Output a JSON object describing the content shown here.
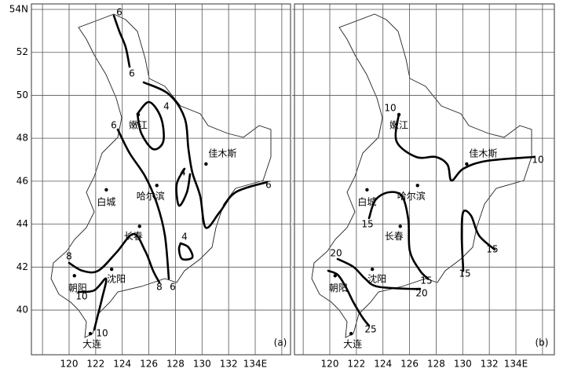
{
  "lon_ticks": [
    {
      "value": 120,
      "label": "120"
    },
    {
      "value": 122,
      "label": "122"
    },
    {
      "value": 124,
      "label": "124"
    },
    {
      "value": 126,
      "label": "126"
    },
    {
      "value": 128,
      "label": "128"
    },
    {
      "value": 130,
      "label": "130"
    },
    {
      "value": 132,
      "label": "132"
    },
    {
      "value": 134,
      "label": "134E"
    }
  ],
  "lat_ticks": [
    {
      "value": 54,
      "label": "54N"
    },
    {
      "value": 52,
      "label": "52"
    },
    {
      "value": 50,
      "label": "50"
    },
    {
      "value": 48,
      "label": "48"
    },
    {
      "value": 46,
      "label": "46"
    },
    {
      "value": 44,
      "label": "44"
    },
    {
      "value": 42,
      "label": "42"
    },
    {
      "value": 40,
      "label": "40"
    }
  ],
  "cities": [
    "嫩江",
    "佳木斯",
    "白城",
    "哈尔滨",
    "长春",
    "朝阳",
    "沈阳",
    "大连"
  ],
  "panels": [
    {
      "label": "(a)",
      "contour_labels": [
        "6",
        "6",
        "4",
        "6",
        "4",
        "6",
        "4",
        "8",
        "10",
        "8",
        "6",
        "10"
      ]
    },
    {
      "label": "(b)",
      "contour_labels": [
        "10",
        "10",
        "15",
        "15",
        "15",
        "15",
        "20",
        "20",
        "25"
      ]
    }
  ]
}
